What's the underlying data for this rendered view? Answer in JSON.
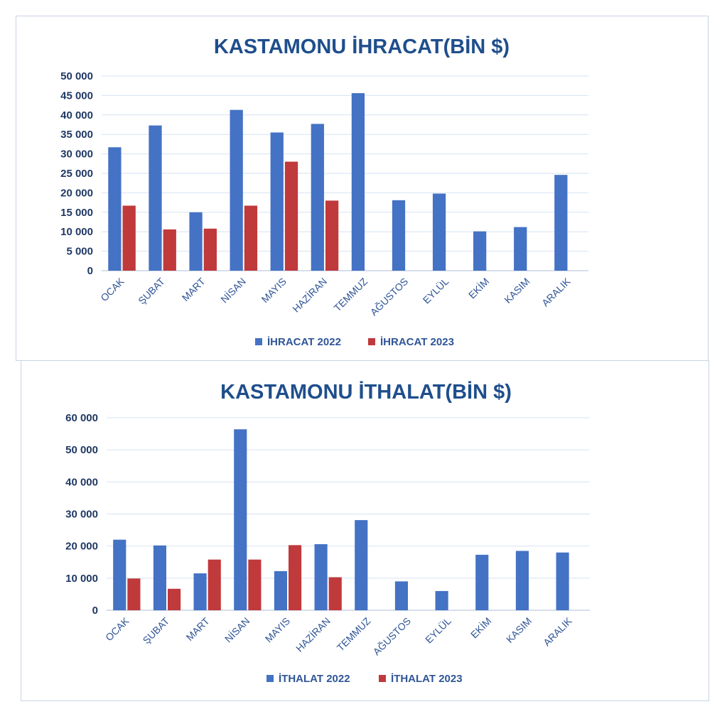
{
  "colors": {
    "series_2022": "#4472c4",
    "series_2023": "#c0393b",
    "title": "#1f4e8c"
  },
  "chart_data": [
    {
      "type": "bar",
      "title": "KASTAMONU İHRACAT(BİN $)",
      "xlabel": "",
      "ylabel": "",
      "categories": [
        "OCAK",
        "ŞUBAT",
        "MART",
        "NİSAN",
        "MAYIS",
        "HAZİRAN",
        "TEMMUZ",
        "AĞUSTOS",
        "EYLÜL",
        "EKİM",
        "KASIM",
        "ARALIK"
      ],
      "ylim": [
        0,
        50000
      ],
      "yticks": [
        0,
        5000,
        10000,
        15000,
        20000,
        25000,
        30000,
        35000,
        40000,
        45000,
        50000
      ],
      "ytick_labels": [
        "0",
        "5 000",
        "10 000",
        "15 000",
        "20 000",
        "25 000",
        "30 000",
        "35 000",
        "40 000",
        "45 000",
        "50 000"
      ],
      "grid": true,
      "legend_position": "bottom",
      "series": [
        {
          "name": "İHRACAT 2022",
          "color": "#4472c4",
          "values": [
            31700,
            37300,
            15000,
            41300,
            35500,
            37700,
            45600,
            18100,
            19800,
            10100,
            11200,
            24600
          ]
        },
        {
          "name": "İHRACAT 2023",
          "color": "#c0393b",
          "values": [
            16700,
            10600,
            10800,
            16700,
            28000,
            18000,
            null,
            null,
            null,
            null,
            null,
            null
          ]
        }
      ]
    },
    {
      "type": "bar",
      "title": "KASTAMONU İTHALAT(BİN $)",
      "xlabel": "",
      "ylabel": "",
      "categories": [
        "OCAK",
        "ŞUBAT",
        "MART",
        "NİSAN",
        "MAYIS",
        "HAZİRAN",
        "TEMMUZ",
        "AĞUSTOS",
        "EYLÜL",
        "EKİM",
        "KASIM",
        "ARALIK"
      ],
      "ylim": [
        0,
        60000
      ],
      "yticks": [
        0,
        10000,
        20000,
        30000,
        40000,
        50000,
        60000
      ],
      "ytick_labels": [
        "0",
        "10 000",
        "20 000",
        "30 000",
        "40 000",
        "50 000",
        "60 000"
      ],
      "grid": true,
      "legend_position": "bottom",
      "series": [
        {
          "name": "İTHALAT 2022",
          "color": "#4472c4",
          "values": [
            22000,
            20200,
            11500,
            56400,
            12200,
            20600,
            28100,
            9000,
            6000,
            17300,
            18500,
            18000
          ]
        },
        {
          "name": "İTHALAT 2023",
          "color": "#c0393b",
          "values": [
            9900,
            6700,
            15800,
            15800,
            20300,
            10300,
            null,
            null,
            null,
            null,
            null,
            null
          ]
        }
      ]
    }
  ]
}
